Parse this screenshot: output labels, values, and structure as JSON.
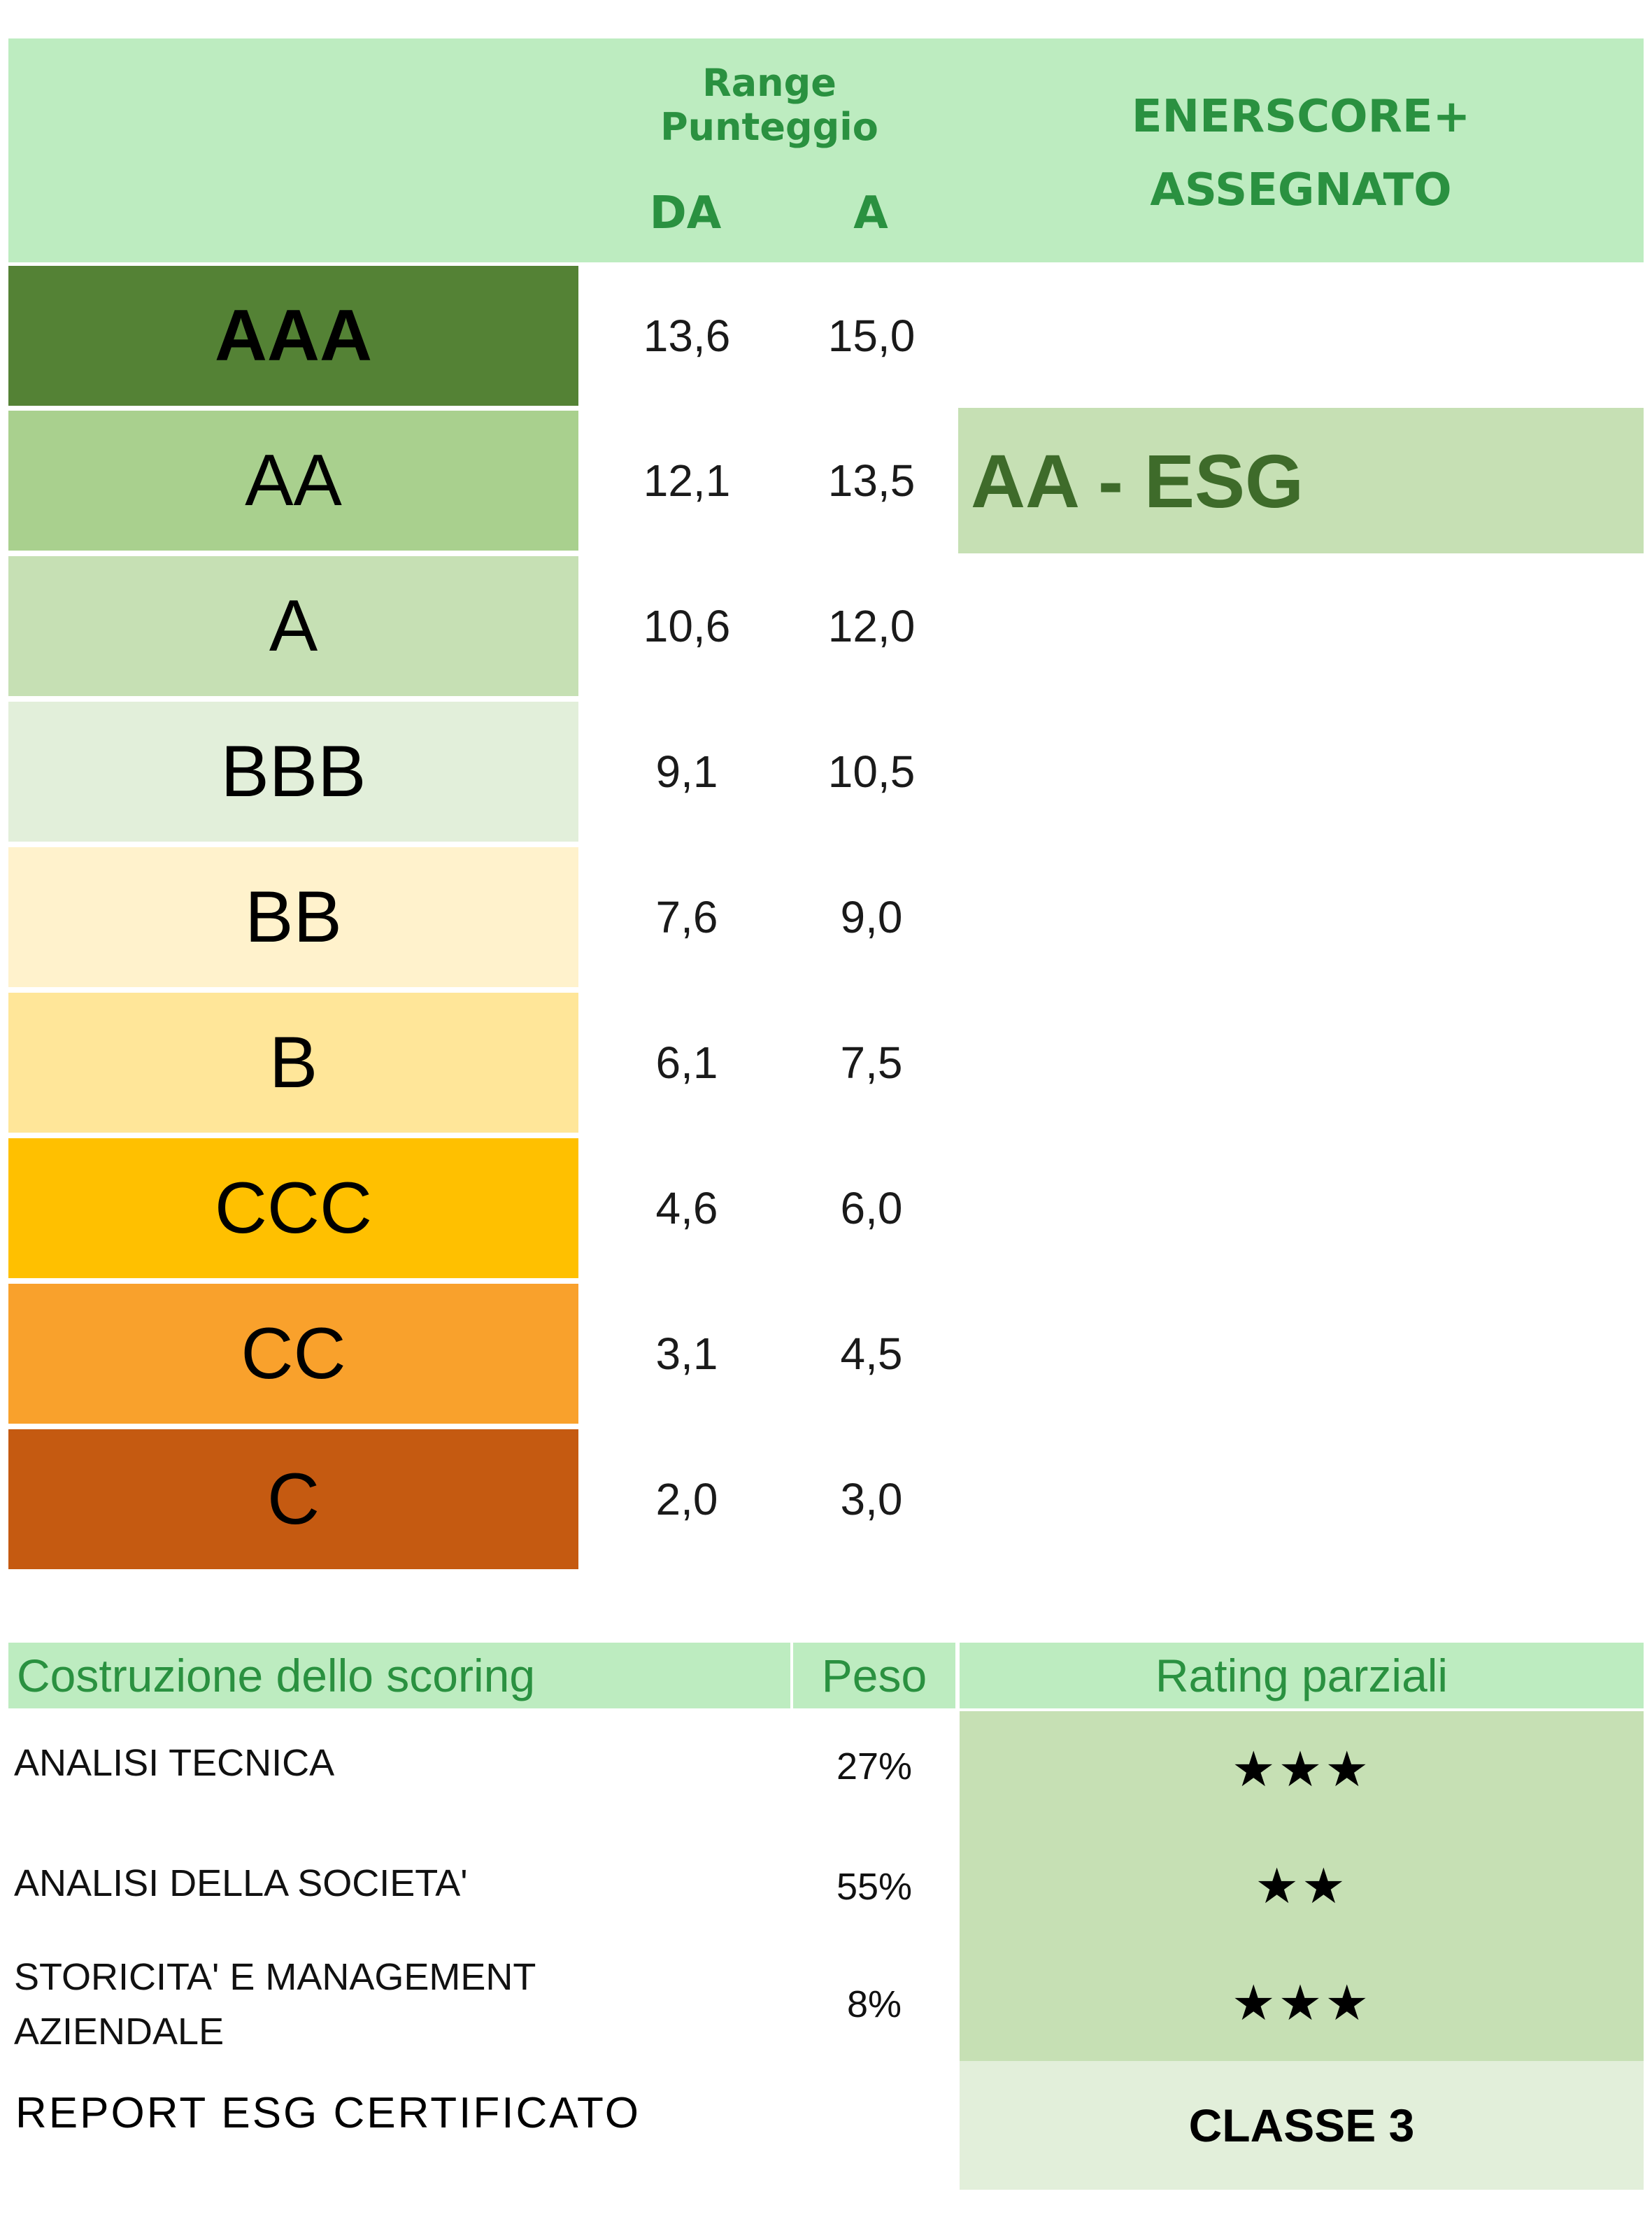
{
  "header": {
    "range_title": "Range Punteggio",
    "col_from": "DA",
    "col_to": "A",
    "assigned_line1": "ENERSCORE+",
    "assigned_line2": "ASSEGNATO"
  },
  "ratings": [
    {
      "grade": "AAA",
      "from": "13,6",
      "to": "15,0",
      "color": "#548235",
      "bold": true
    },
    {
      "grade": "AA",
      "from": "12,1",
      "to": "13,5",
      "color": "#a9d08e"
    },
    {
      "grade": "A",
      "from": "10,6",
      "to": "12,0",
      "color": "#c6e0b4"
    },
    {
      "grade": "BBB",
      "from": "9,1",
      "to": "10,5",
      "color": "#e2efda"
    },
    {
      "grade": "BB",
      "from": "7,6",
      "to": "9,0",
      "color": "#fff2cc"
    },
    {
      "grade": "B",
      "from": "6,1",
      "to": "7,5",
      "color": "#ffe699"
    },
    {
      "grade": "CCC",
      "from": "4,6",
      "to": "6,0",
      "color": "#ffc000"
    },
    {
      "grade": "CC",
      "from": "3,1",
      "to": "4,5",
      "color": "#f9a12c"
    },
    {
      "grade": "C",
      "from": "2,0",
      "to": "3,0",
      "color": "#c55a11"
    }
  ],
  "assigned": {
    "value": "AA - ESG",
    "color": "#c6e0b4"
  },
  "scoring": {
    "title": "Costruzione dello scoring",
    "weight_header": "Peso",
    "rating_header": "Rating parziali",
    "criteria": [
      {
        "label_line1": "ANALISI TECNICA",
        "label_line2": "",
        "weight": "27%",
        "stars": "★★★"
      },
      {
        "label_line1": "ANALISI DELLA SOCIETA'",
        "label_line2": "",
        "weight": "55%",
        "stars": "★★"
      },
      {
        "label_line1": "STORICITA' E MANAGEMENT",
        "label_line2": "AZIENDALE",
        "weight": "8%",
        "stars": "★★★"
      }
    ],
    "report_label": "REPORT ESG CERTIFICATO",
    "report_class": "CLASSE 3"
  }
}
